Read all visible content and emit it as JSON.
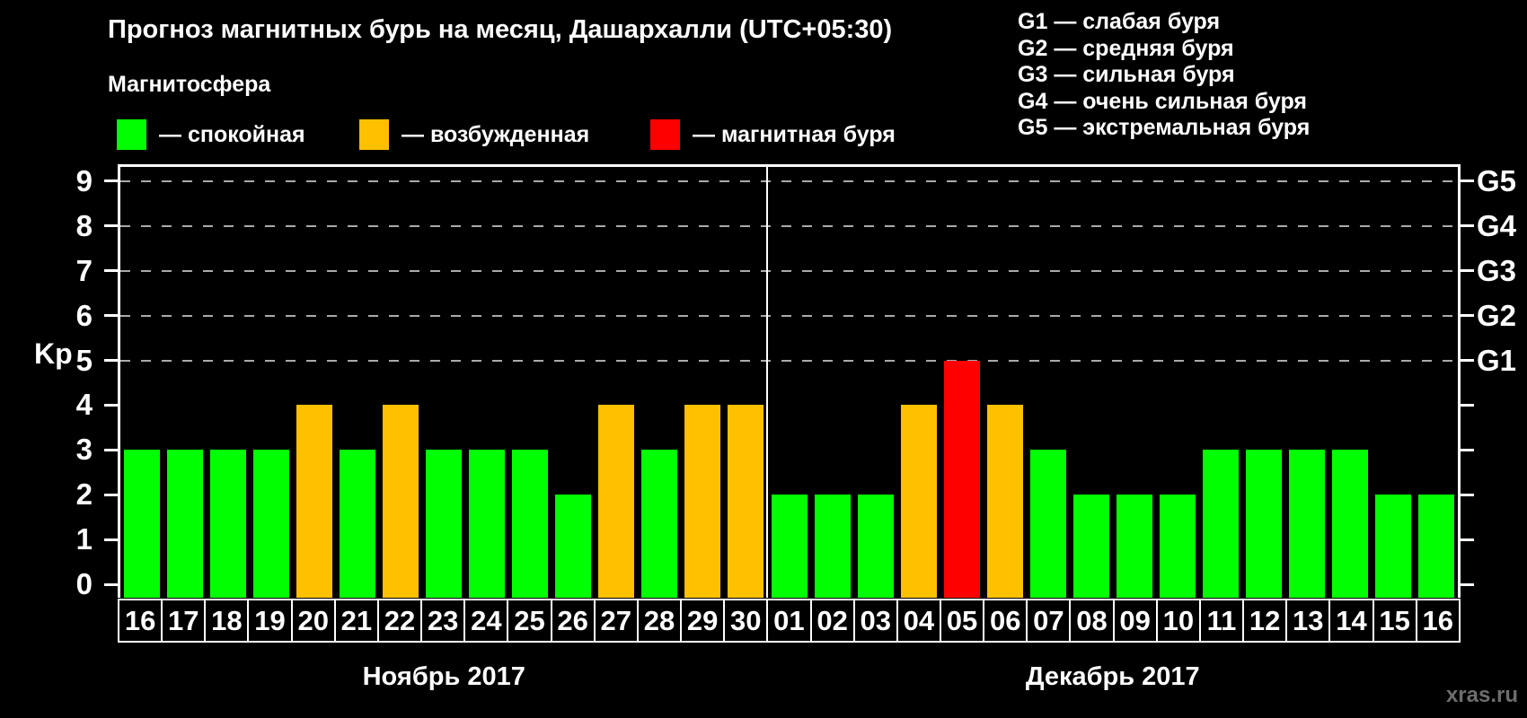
{
  "header": {
    "title": "Прогноз магнитных бурь на месяц, Дашархалли (UTC+05:30)"
  },
  "g_legend": {
    "items": [
      {
        "code": "G1",
        "sep": "—",
        "label": "слабая буря"
      },
      {
        "code": "G2",
        "sep": "—",
        "label": "средняя буря"
      },
      {
        "code": "G3",
        "sep": "—",
        "label": "сильная буря"
      },
      {
        "code": "G4",
        "sep": "—",
        "label": "очень сильная буря"
      },
      {
        "code": "G5",
        "sep": "—",
        "label": "экстремальная буря"
      }
    ]
  },
  "legend": {
    "heading": "Магнитосфера",
    "items": [
      {
        "key": "quiet",
        "label": "— спокойная",
        "color": "#00ff00"
      },
      {
        "key": "active",
        "label": "— возбужденная",
        "color": "#ffc000"
      },
      {
        "key": "storm",
        "label": "— магнитная буря",
        "color": "#ff0000"
      }
    ]
  },
  "chart_data": {
    "type": "bar",
    "title": "Прогноз магнитных бурь на месяц, Дашархалли (UTC+05:30)",
    "ylabel": "Kp",
    "ylim": [
      0,
      9
    ],
    "yticks": [
      0,
      1,
      2,
      3,
      4,
      5,
      6,
      7,
      8,
      9
    ],
    "grid": "dashed horizontal lines at Kp 5-9",
    "grid_levels": [
      5,
      6,
      7,
      8,
      9
    ],
    "right_axis": [
      {
        "label": "G5",
        "level": 9
      },
      {
        "label": "G4",
        "level": 8
      },
      {
        "label": "G3",
        "level": 7
      },
      {
        "label": "G2",
        "level": 6
      },
      {
        "label": "G1",
        "level": 5
      }
    ],
    "months": [
      {
        "label": "Ноябрь 2017",
        "days": [
          {
            "label": "16",
            "kp": 3,
            "state": "quiet"
          },
          {
            "label": "17",
            "kp": 3,
            "state": "quiet"
          },
          {
            "label": "18",
            "kp": 3,
            "state": "quiet"
          },
          {
            "label": "19",
            "kp": 3,
            "state": "quiet"
          },
          {
            "label": "20",
            "kp": 4,
            "state": "active"
          },
          {
            "label": "21",
            "kp": 3,
            "state": "quiet"
          },
          {
            "label": "22",
            "kp": 4,
            "state": "active"
          },
          {
            "label": "23",
            "kp": 3,
            "state": "quiet"
          },
          {
            "label": "24",
            "kp": 3,
            "state": "quiet"
          },
          {
            "label": "25",
            "kp": 3,
            "state": "quiet"
          },
          {
            "label": "26",
            "kp": 2,
            "state": "quiet"
          },
          {
            "label": "27",
            "kp": 4,
            "state": "active"
          },
          {
            "label": "28",
            "kp": 3,
            "state": "quiet"
          },
          {
            "label": "29",
            "kp": 4,
            "state": "active"
          },
          {
            "label": "30",
            "kp": 4,
            "state": "active"
          }
        ]
      },
      {
        "label": "Декабрь 2017",
        "days": [
          {
            "label": "01",
            "kp": 2,
            "state": "quiet"
          },
          {
            "label": "02",
            "kp": 2,
            "state": "quiet"
          },
          {
            "label": "03",
            "kp": 2,
            "state": "quiet"
          },
          {
            "label": "04",
            "kp": 4,
            "state": "active"
          },
          {
            "label": "05",
            "kp": 5,
            "state": "storm"
          },
          {
            "label": "06",
            "kp": 4,
            "state": "active"
          },
          {
            "label": "07",
            "kp": 3,
            "state": "quiet"
          },
          {
            "label": "08",
            "kp": 2,
            "state": "quiet"
          },
          {
            "label": "09",
            "kp": 2,
            "state": "quiet"
          },
          {
            "label": "10",
            "kp": 2,
            "state": "quiet"
          },
          {
            "label": "11",
            "kp": 3,
            "state": "quiet"
          },
          {
            "label": "12",
            "kp": 3,
            "state": "quiet"
          },
          {
            "label": "13",
            "kp": 3,
            "state": "quiet"
          },
          {
            "label": "14",
            "kp": 3,
            "state": "quiet"
          },
          {
            "label": "15",
            "kp": 2,
            "state": "quiet"
          },
          {
            "label": "16",
            "kp": 2,
            "state": "quiet"
          }
        ]
      }
    ]
  },
  "watermark": "xras.ru"
}
